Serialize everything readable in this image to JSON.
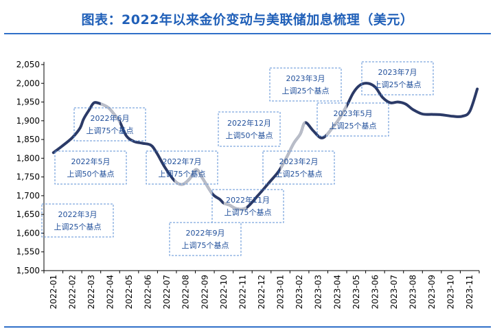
{
  "title": "图表：2022年以来金价变动与美联储加息梳理（美元）",
  "chart_data": {
    "type": "line",
    "title": "图表：2022年以来金价变动与美联储加息梳理（美元）",
    "xlabel": "",
    "ylabel": "",
    "ylim": [
      1500,
      2050
    ],
    "yticks": [
      1500,
      1550,
      1600,
      1650,
      1700,
      1750,
      1800,
      1850,
      1900,
      1950,
      2000,
      2050
    ],
    "categories": [
      "2022-01",
      "2022-02",
      "2022-03",
      "2022-04",
      "2022-05",
      "2022-06",
      "2022-07",
      "2022-08",
      "2022-09",
      "2022-10",
      "2022-11",
      "2022-12",
      "2023-01",
      "2023-02",
      "2023-03",
      "2023-04",
      "2023-05",
      "2023-06",
      "2023-07",
      "2023-08",
      "2023-09",
      "2023-10",
      "2023-11"
    ],
    "grid": false,
    "series": [
      {
        "x": [
          0,
          0.45,
          1,
          1.4,
          1.6,
          1.9,
          2.15,
          2.5,
          2.9,
          3.2,
          3.5,
          3.85,
          4.25,
          4.7,
          5.15,
          5.45,
          5.9,
          6.4,
          6.8,
          7.2,
          7.55,
          7.9,
          8.4,
          8.8,
          9.0,
          9.3,
          9.7,
          10.2,
          10.8,
          11.4,
          11.9,
          12.3,
          12.7,
          13.05,
          13.3,
          13.7,
          14.1,
          14.4,
          14.8,
          15.1,
          15.5,
          15.85,
          16.2,
          16.6,
          17.0,
          17.4,
          17.8,
          18.2,
          18.6,
          19.0,
          19.5,
          20.0,
          20.5,
          21.1,
          21.6,
          22.0,
          22.4
        ],
        "values": [
          1815,
          1832,
          1855,
          1880,
          1905,
          1930,
          1948,
          1945,
          1935,
          1918,
          1898,
          1860,
          1845,
          1840,
          1835,
          1815,
          1775,
          1740,
          1730,
          1745,
          1770,
          1745,
          1705,
          1690,
          1680,
          1675,
          1665,
          1668,
          1700,
          1735,
          1765,
          1800,
          1840,
          1865,
          1895,
          1875,
          1855,
          1860,
          1885,
          1905,
          1940,
          1975,
          1995,
          2000,
          1990,
          1962,
          1948,
          1950,
          1945,
          1930,
          1918,
          1917,
          1916,
          1912,
          1912,
          1925,
          1985
        ],
        "highlight_ranges": [
          [
            2.5,
            3.5
          ],
          [
            6.4,
            8.4
          ],
          [
            9.0,
            10.2
          ],
          [
            12.0,
            13.3
          ],
          [
            14.4,
            15.5
          ]
        ]
      }
    ],
    "annotations": [
      {
        "date": "2022年3月",
        "action": "上调25个基点"
      },
      {
        "date": "2022年5月",
        "action": "上调50个基点"
      },
      {
        "date": "2022年6月",
        "action": "上调75个基点"
      },
      {
        "date": "2022年7月",
        "action": "上调75个基点"
      },
      {
        "date": "2022年9月",
        "action": "上调75个基点"
      },
      {
        "date": "2022年11月",
        "action": "上调75个基点"
      },
      {
        "date": "2022年12月",
        "action": "上调50个基点"
      },
      {
        "date": "2023年2月",
        "action": "上调25个基点"
      },
      {
        "date": "2023年3月",
        "action": "上调25个基点"
      },
      {
        "date": "2023年5月",
        "action": "上调25个基点"
      },
      {
        "date": "2023年7月",
        "action": "上调25个基点"
      }
    ],
    "colors": {
      "line": "#2b3a67",
      "highlight": "#b9bdc8",
      "annotation_border": "#5b8fd6",
      "annotation_text": "#1f4e9a",
      "title": "#1f5fb8"
    }
  }
}
